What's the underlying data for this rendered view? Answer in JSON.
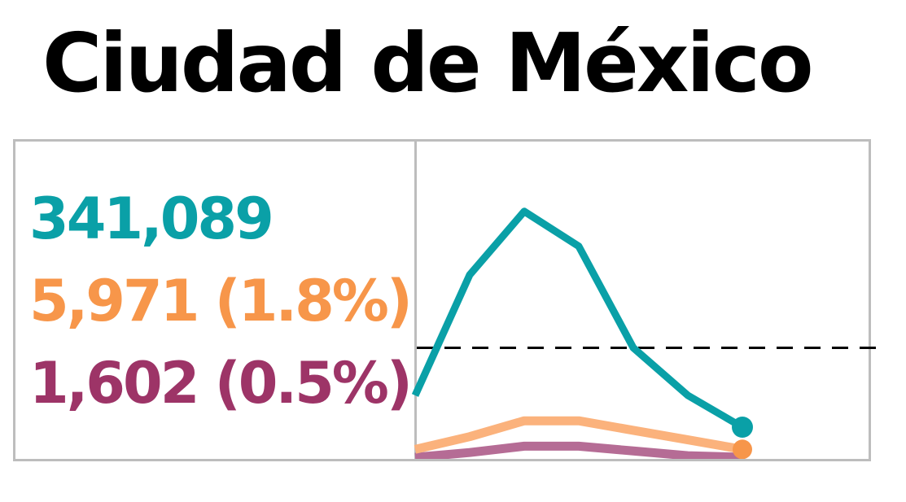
{
  "title": "Ciudad de México",
  "stats": {
    "cases": "341,089",
    "hospitalized": "5,971 (1.8%)",
    "deaths": "1,602 (0.5%)"
  },
  "colors": {
    "cases": "#0aa0a7",
    "hospitalized": "#f7964a",
    "hospitalized_line": "#fbb27c",
    "deaths": "#9d3467",
    "deaths_line": "#b56c95",
    "frame": "#bdbdbd",
    "reference": "#000000"
  },
  "chart_data": {
    "type": "line",
    "x": [
      0,
      1,
      2,
      3,
      4,
      5,
      6
    ],
    "ylim": [
      0,
      100
    ],
    "reference_line": 35,
    "grid": false,
    "series": [
      {
        "key": "cases",
        "values": [
          20,
          58,
          78,
          67,
          35,
          20,
          10
        ],
        "end_marker": true
      },
      {
        "key": "hospitalized",
        "values": [
          3,
          7,
          12,
          12,
          9,
          6,
          3
        ],
        "end_marker": true
      },
      {
        "key": "deaths",
        "values": [
          0.5,
          2,
          4,
          4,
          2.5,
          1,
          0.5
        ],
        "end_marker": false
      }
    ]
  }
}
